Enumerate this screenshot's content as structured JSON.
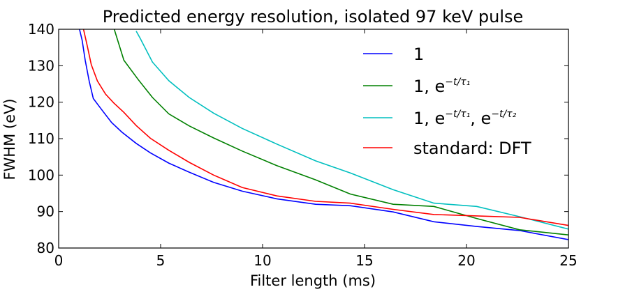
{
  "chart_data": {
    "type": "line",
    "title": "Predicted energy resolution, isolated 97 keV pulse",
    "xlabel": "Filter length (ms)",
    "ylabel": "FWHM (eV)",
    "xlim": [
      0,
      25
    ],
    "ylim": [
      80,
      140
    ],
    "xticks": [
      0,
      5,
      10,
      15,
      20,
      25
    ],
    "yticks": [
      80,
      90,
      100,
      110,
      120,
      130,
      140
    ],
    "grid": false,
    "legend_position": "top-right",
    "series": [
      {
        "name": "1",
        "legend_parts": [
          {
            "t": "1",
            "sup": false
          }
        ],
        "color": "#0000ff",
        "x": [
          1.0,
          1.15,
          1.3,
          1.5,
          1.7,
          1.9,
          2.2,
          2.6,
          3.1,
          3.8,
          4.5,
          5.4,
          6.4,
          7.6,
          9.0,
          10.7,
          12.6,
          14.3,
          16.4,
          18.4,
          20.5,
          22.6,
          25.0
        ],
        "y": [
          140.5,
          137.0,
          131.5,
          125.7,
          121.0,
          119.5,
          117.3,
          114.4,
          111.8,
          108.7,
          106.1,
          103.3,
          100.8,
          98.0,
          95.6,
          93.5,
          92.0,
          91.6,
          89.9,
          87.2,
          85.9,
          84.8,
          82.3
        ]
      },
      {
        "name": "1, e^{-t/τ1}",
        "legend_parts": [
          {
            "t": "1, e",
            "sup": false
          },
          {
            "t": "−t/τ₁",
            "sup": true
          }
        ],
        "color": "#008000",
        "x": [
          2.7,
          3.2,
          3.9,
          4.6,
          5.4,
          6.4,
          7.6,
          9.0,
          10.7,
          12.6,
          14.3,
          16.4,
          18.4,
          20.5,
          22.6,
          25.0
        ],
        "y": [
          140.5,
          131.5,
          126.2,
          121.3,
          116.8,
          113.5,
          110.2,
          106.6,
          102.6,
          98.7,
          94.8,
          92.0,
          91.4,
          88.1,
          85.0,
          83.6
        ]
      },
      {
        "name": "1, e^{-t/τ1}, e^{-t/τ2}",
        "legend_parts": [
          {
            "t": "1, e",
            "sup": false
          },
          {
            "t": "−t/τ₁",
            "sup": true
          },
          {
            "t": ", e",
            "sup": false
          },
          {
            "t": "−t/τ₂",
            "sup": true
          }
        ],
        "color": "#00bfbf",
        "x": [
          3.8,
          4.0,
          4.6,
          5.4,
          6.4,
          7.6,
          9.0,
          10.7,
          12.6,
          14.3,
          16.4,
          18.4,
          20.5,
          22.6,
          25.0
        ],
        "y": [
          139.5,
          137.5,
          131.0,
          125.9,
          121.3,
          117.0,
          112.8,
          108.5,
          103.9,
          100.6,
          96.0,
          92.3,
          91.4,
          88.6,
          85.2
        ]
      },
      {
        "name": "standard: DFT",
        "legend_parts": [
          {
            "t": "standard: DFT",
            "sup": false
          }
        ],
        "color": "#ff0000",
        "x": [
          1.2,
          1.4,
          1.6,
          1.9,
          2.3,
          2.7,
          3.2,
          3.8,
          4.5,
          5.4,
          6.4,
          7.6,
          9.0,
          10.7,
          12.6,
          14.3,
          16.4,
          18.4,
          20.5,
          22.6,
          25.0
        ],
        "y": [
          140.5,
          135.5,
          130.3,
          125.8,
          122.2,
          119.8,
          117.2,
          113.6,
          110.1,
          106.8,
          103.5,
          100.0,
          96.6,
          94.3,
          92.8,
          92.3,
          90.6,
          89.2,
          88.8,
          88.4,
          86.2
        ]
      }
    ]
  }
}
